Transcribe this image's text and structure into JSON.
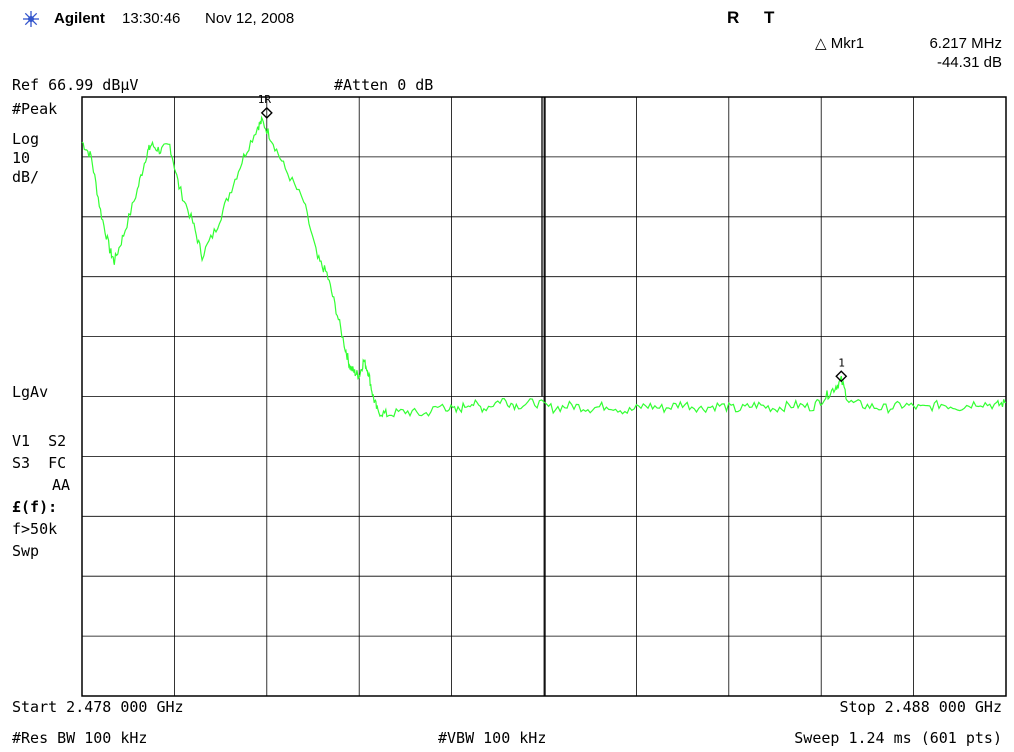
{
  "header": {
    "brand": "Agilent",
    "time": "13:30:46",
    "date": "Nov 12, 2008",
    "status_r": "R",
    "status_t": "T",
    "marker_label": "△ Mkr1",
    "marker_freq": "6.217 MHz",
    "marker_delta": "-44.31 dB",
    "ref_level": "Ref 66.99 dBµV",
    "atten": "#Atten 0 dB"
  },
  "left_panel": {
    "detector": "#Peak",
    "scale_type": "Log",
    "scale_value": "10",
    "scale_unit": "dB/",
    "avg": "LgAv",
    "v1s2": "V1  S2",
    "s3fc": "S3  FC",
    "aa": "AA",
    "ef": "£(f):",
    "f50k": "f>50k",
    "swp": "Swp"
  },
  "footer": {
    "start": "Start 2.478 000 GHz",
    "stop": "Stop 2.488 000 GHz",
    "rbw": "#Res BW 100 kHz",
    "vbw": "#VBW 100 kHz",
    "sweep": "Sweep 1.24 ms (601 pts)"
  },
  "markers": {
    "ref_label": "1R",
    "delta_label": "1"
  },
  "colors": {
    "trace": "#33ff33",
    "grid": "#000000",
    "logo": "#3355cc"
  },
  "chart_data": {
    "type": "line",
    "xlabel": "",
    "ylabel": "",
    "xlim": [
      2.478,
      2.488
    ],
    "ylim": [
      -33.01,
      66.99
    ],
    "x_unit": "GHz",
    "y_unit": "dBµV",
    "grid": true,
    "divisions": {
      "x": 10,
      "y": 10
    },
    "ref_marker": {
      "x": 2.48,
      "y": 64.0
    },
    "delta_marker": {
      "x": 2.486217,
      "y": 19.7
    },
    "series": [
      {
        "points": [
          [
            2.478,
            59.5
          ],
          [
            2.4781,
            57.0
          ],
          [
            2.4782,
            48.0
          ],
          [
            2.4783,
            41.5
          ],
          [
            2.47835,
            39.5
          ],
          [
            2.47845,
            44.0
          ],
          [
            2.4786,
            51.5
          ],
          [
            2.4787,
            57.5
          ],
          [
            2.47875,
            59.0
          ],
          [
            2.47885,
            58.0
          ],
          [
            2.47895,
            59.0
          ],
          [
            2.47905,
            52.0
          ],
          [
            2.4792,
            46.0
          ],
          [
            2.4793,
            40.5
          ],
          [
            2.47945,
            45.0
          ],
          [
            2.4796,
            51.0
          ],
          [
            2.47975,
            57.0
          ],
          [
            2.4799,
            62.0
          ],
          [
            2.47995,
            63.0
          ],
          [
            2.48005,
            60.0
          ],
          [
            2.4802,
            55.0
          ],
          [
            2.4804,
            49.5
          ],
          [
            2.48055,
            40.0
          ],
          [
            2.48065,
            37.5
          ],
          [
            2.48075,
            31.5
          ],
          [
            2.48085,
            25.0
          ],
          [
            2.4809,
            22.0
          ],
          [
            2.48095,
            21.0
          ],
          [
            2.481,
            20.5
          ],
          [
            2.48105,
            23.0
          ],
          [
            2.4811,
            21.0
          ],
          [
            2.48115,
            17.0
          ],
          [
            2.4812,
            14.5
          ],
          [
            2.4813,
            14.0
          ],
          [
            2.4815,
            14.5
          ],
          [
            2.4817,
            14.0
          ],
          [
            2.4819,
            15.5
          ],
          [
            2.48205,
            14.5
          ],
          [
            2.4822,
            16.0
          ],
          [
            2.48235,
            15.0
          ],
          [
            2.48255,
            16.5
          ],
          [
            2.4827,
            15.5
          ],
          [
            2.4829,
            16.0
          ],
          [
            2.4831,
            15.0
          ],
          [
            2.4833,
            15.5
          ],
          [
            2.4835,
            15.0
          ],
          [
            2.4837,
            15.5
          ],
          [
            2.4839,
            14.5
          ],
          [
            2.4841,
            15.5
          ],
          [
            2.4843,
            15.0
          ],
          [
            2.4845,
            15.8
          ],
          [
            2.4847,
            15.0
          ],
          [
            2.4849,
            15.5
          ],
          [
            2.4851,
            14.8
          ],
          [
            2.4853,
            15.6
          ],
          [
            2.4855,
            15.0
          ],
          [
            2.4857,
            15.6
          ],
          [
            2.4859,
            15.2
          ],
          [
            2.48605,
            17.0
          ],
          [
            2.48615,
            18.5
          ],
          [
            2.486217,
            19.7
          ],
          [
            2.4863,
            16.0
          ],
          [
            2.4865,
            15.4
          ],
          [
            2.4867,
            15.0
          ],
          [
            2.4869,
            15.6
          ],
          [
            2.4871,
            15.0
          ],
          [
            2.4873,
            15.7
          ],
          [
            2.4875,
            15.2
          ],
          [
            2.4877,
            16.0
          ],
          [
            2.4879,
            15.5
          ],
          [
            2.488,
            16.0
          ]
        ]
      }
    ]
  }
}
